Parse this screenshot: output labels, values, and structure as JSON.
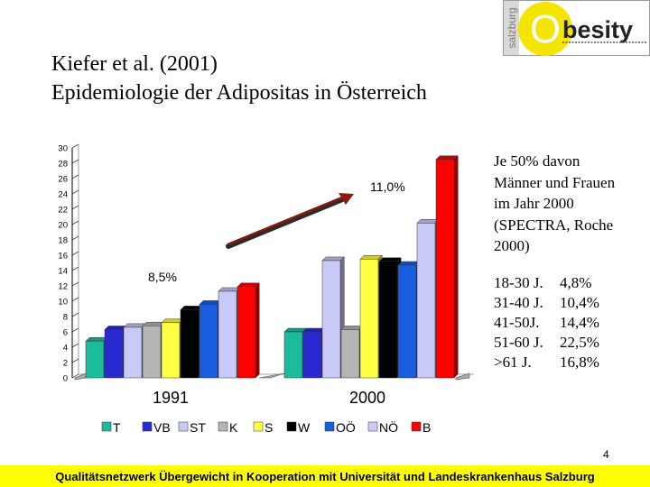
{
  "title": {
    "line1": "Kiefer et al. (2001)",
    "line2": "Epidemiologie der Adipositas in Österreich"
  },
  "logo": {
    "letter": "O",
    "word": "besity",
    "vertical": "salzburg",
    "colors": {
      "circle": "#f4e400",
      "frame": "#9a9a9a"
    }
  },
  "chart_data": {
    "type": "bar",
    "groups": [
      "1991",
      "2000"
    ],
    "series": [
      {
        "name": "T",
        "color": "#1abc9c",
        "values": [
          4.8,
          6.0
        ]
      },
      {
        "name": "VB",
        "color": "#2a2ad0",
        "values": [
          6.3,
          6.0
        ]
      },
      {
        "name": "ST",
        "color": "#c9c9f7",
        "values": [
          6.6,
          15.3
        ]
      },
      {
        "name": "K",
        "color": "#b5b5b5",
        "values": [
          6.8,
          6.3
        ]
      },
      {
        "name": "S",
        "color": "#ffff44",
        "values": [
          7.2,
          15.5
        ]
      },
      {
        "name": "W",
        "color": "#000000",
        "values": [
          8.9,
          15.2
        ]
      },
      {
        "name": "OÖ",
        "color": "#1a5ee0",
        "values": [
          9.6,
          14.7
        ]
      },
      {
        "name": "NÖ",
        "color": "#c9c9f7",
        "values": [
          11.3,
          20.2
        ]
      },
      {
        "name": "B",
        "color": "#ff0000",
        "values": [
          11.9,
          28.5
        ]
      }
    ],
    "y_ticks": [
      0,
      2,
      4,
      6,
      8,
      10,
      12,
      14,
      16,
      18,
      20,
      22,
      24,
      26,
      28,
      30
    ],
    "ylim": [
      0,
      30
    ],
    "annotations": {
      "start_label": "8,5%",
      "end_label": "11,0%"
    },
    "legend_position": "bottom"
  },
  "side_text": {
    "line1": "Je 50% davon",
    "line2": "Männer und Frauen",
    "line3": "im Jahr 2000",
    "line4": "(SPECTRA, Roche",
    "line5": "2000)"
  },
  "age_stats": [
    {
      "label": "18-30 J.",
      "value": "4,8%"
    },
    {
      "label": "31-40 J.",
      "value": "10,4%"
    },
    {
      "label": "41-50J.",
      "value": "14,4%"
    },
    {
      "label": "51-60 J.",
      "value": "22,5%"
    },
    {
      "label": ">61 J.",
      "value": "16,8%"
    }
  ],
  "page_number": "4",
  "footer": "Qualitätsnetzwerk Übergewicht in Kooperation mit Universität und Landeskrankenhaus Salzburg"
}
